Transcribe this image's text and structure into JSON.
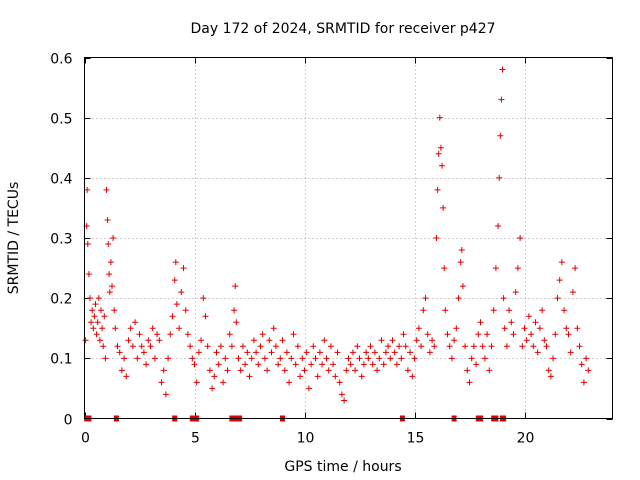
{
  "chart_data": {
    "type": "scatter",
    "title": "Day 172 of 2024, SRMTID for receiver p427",
    "xlabel": "GPS time / hours",
    "ylabel": "SRMTID / TECUs",
    "xlim": [
      0,
      24
    ],
    "ylim": [
      0,
      0.6
    ],
    "xticks": [
      "0",
      "5",
      "10",
      "15",
      "20"
    ],
    "xtick_values": [
      0,
      5,
      10,
      15,
      20
    ],
    "yticks": [
      "0",
      "0.1",
      "0.2",
      "0.3",
      "0.4",
      "0.5",
      "0.6"
    ],
    "ytick_values": [
      0,
      0.1,
      0.2,
      0.3,
      0.4,
      0.5,
      0.6
    ],
    "grid": true,
    "marker": "+",
    "color": "#e00000",
    "series": [
      {
        "name": "SRMTID",
        "points": [
          [
            0.05,
            0.13
          ],
          [
            0.1,
            0.32
          ],
          [
            0.12,
            0.38
          ],
          [
            0.15,
            0.29
          ],
          [
            0.2,
            0.24
          ],
          [
            0.25,
            0.2
          ],
          [
            0.3,
            0.16
          ],
          [
            0.35,
            0.18
          ],
          [
            0.4,
            0.15
          ],
          [
            0.45,
            0.17
          ],
          [
            0.5,
            0.19
          ],
          [
            0.55,
            0.14
          ],
          [
            0.6,
            0.16
          ],
          [
            0.65,
            0.2
          ],
          [
            0.7,
            0.13
          ],
          [
            0.75,
            0.18
          ],
          [
            0.8,
            0.15
          ],
          [
            0.85,
            0.12
          ],
          [
            0.9,
            0.17
          ],
          [
            0.95,
            0.1
          ],
          [
            1.0,
            0.38
          ],
          [
            1.05,
            0.33
          ],
          [
            1.08,
            0.29
          ],
          [
            1.12,
            0.24
          ],
          [
            1.15,
            0.21
          ],
          [
            1.2,
            0.26
          ],
          [
            1.25,
            0.22
          ],
          [
            1.3,
            0.3
          ],
          [
            1.35,
            0.18
          ],
          [
            1.4,
            0.15
          ],
          [
            1.5,
            0.12
          ],
          [
            1.6,
            0.11
          ],
          [
            1.7,
            0.08
          ],
          [
            1.8,
            0.1
          ],
          [
            1.9,
            0.07
          ],
          [
            2.0,
            0.13
          ],
          [
            2.1,
            0.15
          ],
          [
            2.2,
            0.12
          ],
          [
            2.3,
            0.16
          ],
          [
            2.4,
            0.1
          ],
          [
            2.5,
            0.14
          ],
          [
            2.6,
            0.12
          ],
          [
            2.7,
            0.11
          ],
          [
            2.8,
            0.09
          ],
          [
            2.9,
            0.13
          ],
          [
            3.0,
            0.12
          ],
          [
            3.1,
            0.15
          ],
          [
            3.2,
            0.1
          ],
          [
            3.3,
            0.14
          ],
          [
            3.4,
            0.13
          ],
          [
            3.5,
            0.06
          ],
          [
            3.6,
            0.08
          ],
          [
            3.7,
            0.04
          ],
          [
            3.8,
            0.1
          ],
          [
            3.9,
            0.14
          ],
          [
            4.0,
            0.17
          ],
          [
            4.1,
            0.23
          ],
          [
            4.15,
            0.26
          ],
          [
            4.2,
            0.19
          ],
          [
            4.3,
            0.15
          ],
          [
            4.4,
            0.21
          ],
          [
            4.5,
            0.25
          ],
          [
            4.6,
            0.18
          ],
          [
            4.7,
            0.14
          ],
          [
            4.8,
            0.12
          ],
          [
            4.9,
            0.1
          ],
          [
            5.0,
            0.09
          ],
          [
            5.1,
            0.06
          ],
          [
            5.2,
            0.11
          ],
          [
            5.3,
            0.13
          ],
          [
            5.4,
            0.2
          ],
          [
            5.5,
            0.17
          ],
          [
            5.6,
            0.12
          ],
          [
            5.7,
            0.08
          ],
          [
            5.8,
            0.05
          ],
          [
            5.9,
            0.07
          ],
          [
            6.0,
            0.11
          ],
          [
            6.1,
            0.09
          ],
          [
            6.2,
            0.12
          ],
          [
            6.3,
            0.06
          ],
          [
            6.4,
            0.1
          ],
          [
            6.5,
            0.08
          ],
          [
            6.6,
            0.14
          ],
          [
            6.7,
            0.12
          ],
          [
            6.8,
            0.18
          ],
          [
            6.85,
            0.22
          ],
          [
            6.9,
            0.16
          ],
          [
            7.0,
            0.1
          ],
          [
            7.1,
            0.08
          ],
          [
            7.2,
            0.12
          ],
          [
            7.3,
            0.09
          ],
          [
            7.4,
            0.11
          ],
          [
            7.5,
            0.07
          ],
          [
            7.6,
            0.1
          ],
          [
            7.7,
            0.13
          ],
          [
            7.8,
            0.11
          ],
          [
            7.9,
            0.09
          ],
          [
            8.0,
            0.12
          ],
          [
            8.1,
            0.14
          ],
          [
            8.2,
            0.1
          ],
          [
            8.3,
            0.08
          ],
          [
            8.4,
            0.13
          ],
          [
            8.5,
            0.11
          ],
          [
            8.6,
            0.15
          ],
          [
            8.7,
            0.12
          ],
          [
            8.8,
            0.09
          ],
          [
            8.9,
            0.1
          ],
          [
            9.0,
            0.13
          ],
          [
            9.1,
            0.08
          ],
          [
            9.2,
            0.11
          ],
          [
            9.3,
            0.06
          ],
          [
            9.4,
            0.1
          ],
          [
            9.5,
            0.14
          ],
          [
            9.6,
            0.09
          ],
          [
            9.7,
            0.12
          ],
          [
            9.8,
            0.07
          ],
          [
            9.9,
            0.1
          ],
          [
            10.0,
            0.08
          ],
          [
            10.1,
            0.11
          ],
          [
            10.2,
            0.05
          ],
          [
            10.3,
            0.09
          ],
          [
            10.4,
            0.12
          ],
          [
            10.5,
            0.1
          ],
          [
            10.6,
            0.07
          ],
          [
            10.7,
            0.11
          ],
          [
            10.8,
            0.09
          ],
          [
            10.9,
            0.13
          ],
          [
            11.0,
            0.1
          ],
          [
            11.1,
            0.08
          ],
          [
            11.2,
            0.12
          ],
          [
            11.3,
            0.09
          ],
          [
            11.4,
            0.07
          ],
          [
            11.5,
            0.11
          ],
          [
            11.6,
            0.06
          ],
          [
            11.7,
            0.04
          ],
          [
            11.8,
            0.03
          ],
          [
            11.9,
            0.08
          ],
          [
            12.0,
            0.1
          ],
          [
            12.1,
            0.09
          ],
          [
            12.2,
            0.11
          ],
          [
            12.3,
            0.08
          ],
          [
            12.4,
            0.12
          ],
          [
            12.5,
            0.1
          ],
          [
            12.6,
            0.07
          ],
          [
            12.7,
            0.09
          ],
          [
            12.8,
            0.11
          ],
          [
            12.9,
            0.1
          ],
          [
            13.0,
            0.12
          ],
          [
            13.1,
            0.09
          ],
          [
            13.2,
            0.11
          ],
          [
            13.3,
            0.08
          ],
          [
            13.4,
            0.1
          ],
          [
            13.5,
            0.13
          ],
          [
            13.6,
            0.09
          ],
          [
            13.7,
            0.11
          ],
          [
            13.8,
            0.12
          ],
          [
            13.9,
            0.1
          ],
          [
            14.0,
            0.13
          ],
          [
            14.1,
            0.11
          ],
          [
            14.2,
            0.09
          ],
          [
            14.3,
            0.12
          ],
          [
            14.4,
            0.1
          ],
          [
            14.5,
            0.14
          ],
          [
            14.6,
            0.12
          ],
          [
            14.7,
            0.08
          ],
          [
            14.8,
            0.11
          ],
          [
            14.9,
            0.07
          ],
          [
            15.0,
            0.1
          ],
          [
            15.1,
            0.13
          ],
          [
            15.2,
            0.15
          ],
          [
            15.3,
            0.12
          ],
          [
            15.4,
            0.18
          ],
          [
            15.5,
            0.2
          ],
          [
            15.6,
            0.14
          ],
          [
            15.7,
            0.11
          ],
          [
            15.8,
            0.13
          ],
          [
            15.9,
            0.12
          ],
          [
            16.0,
            0.3
          ],
          [
            16.05,
            0.38
          ],
          [
            16.1,
            0.44
          ],
          [
            16.15,
            0.5
          ],
          [
            16.2,
            0.45
          ],
          [
            16.25,
            0.42
          ],
          [
            16.3,
            0.35
          ],
          [
            16.35,
            0.25
          ],
          [
            16.4,
            0.18
          ],
          [
            16.5,
            0.14
          ],
          [
            16.6,
            0.12
          ],
          [
            16.7,
            0.1
          ],
          [
            16.8,
            0.13
          ],
          [
            16.9,
            0.15
          ],
          [
            17.0,
            0.2
          ],
          [
            17.1,
            0.26
          ],
          [
            17.15,
            0.28
          ],
          [
            17.2,
            0.22
          ],
          [
            17.3,
            0.12
          ],
          [
            17.4,
            0.08
          ],
          [
            17.5,
            0.06
          ],
          [
            17.6,
            0.1
          ],
          [
            17.7,
            0.12
          ],
          [
            17.8,
            0.09
          ],
          [
            17.9,
            0.14
          ],
          [
            18.0,
            0.16
          ],
          [
            18.1,
            0.12
          ],
          [
            18.2,
            0.1
          ],
          [
            18.3,
            0.14
          ],
          [
            18.4,
            0.08
          ],
          [
            18.5,
            0.12
          ],
          [
            18.6,
            0.18
          ],
          [
            18.7,
            0.25
          ],
          [
            18.8,
            0.32
          ],
          [
            18.85,
            0.4
          ],
          [
            18.9,
            0.47
          ],
          [
            18.95,
            0.53
          ],
          [
            19.0,
            0.58
          ],
          [
            19.05,
            0.2
          ],
          [
            19.1,
            0.15
          ],
          [
            19.2,
            0.12
          ],
          [
            19.3,
            0.18
          ],
          [
            19.4,
            0.16
          ],
          [
            19.5,
            0.14
          ],
          [
            19.6,
            0.21
          ],
          [
            19.7,
            0.25
          ],
          [
            19.8,
            0.3
          ],
          [
            19.9,
            0.12
          ],
          [
            20.0,
            0.15
          ],
          [
            20.1,
            0.13
          ],
          [
            20.2,
            0.17
          ],
          [
            20.3,
            0.14
          ],
          [
            20.4,
            0.12
          ],
          [
            20.5,
            0.16
          ],
          [
            20.6,
            0.11
          ],
          [
            20.7,
            0.15
          ],
          [
            20.8,
            0.18
          ],
          [
            20.9,
            0.13
          ],
          [
            21.0,
            0.12
          ],
          [
            21.1,
            0.08
          ],
          [
            21.2,
            0.07
          ],
          [
            21.3,
            0.1
          ],
          [
            21.4,
            0.14
          ],
          [
            21.5,
            0.2
          ],
          [
            21.6,
            0.23
          ],
          [
            21.7,
            0.26
          ],
          [
            21.8,
            0.18
          ],
          [
            21.9,
            0.15
          ],
          [
            22.0,
            0.14
          ],
          [
            22.1,
            0.11
          ],
          [
            22.2,
            0.21
          ],
          [
            22.3,
            0.25
          ],
          [
            22.4,
            0.15
          ],
          [
            22.5,
            0.12
          ],
          [
            22.6,
            0.09
          ],
          [
            22.7,
            0.06
          ],
          [
            22.8,
            0.1
          ],
          [
            22.9,
            0.08
          ]
        ]
      }
    ],
    "zero_points": [
      0.1,
      0.2,
      1.45,
      4.1,
      4.9,
      5.0,
      5.1,
      6.7,
      6.9,
      7.05,
      9.0,
      14.45,
      16.8,
      17.9,
      18.0,
      18.6,
      18.7,
      19.0,
      19.05
    ]
  }
}
